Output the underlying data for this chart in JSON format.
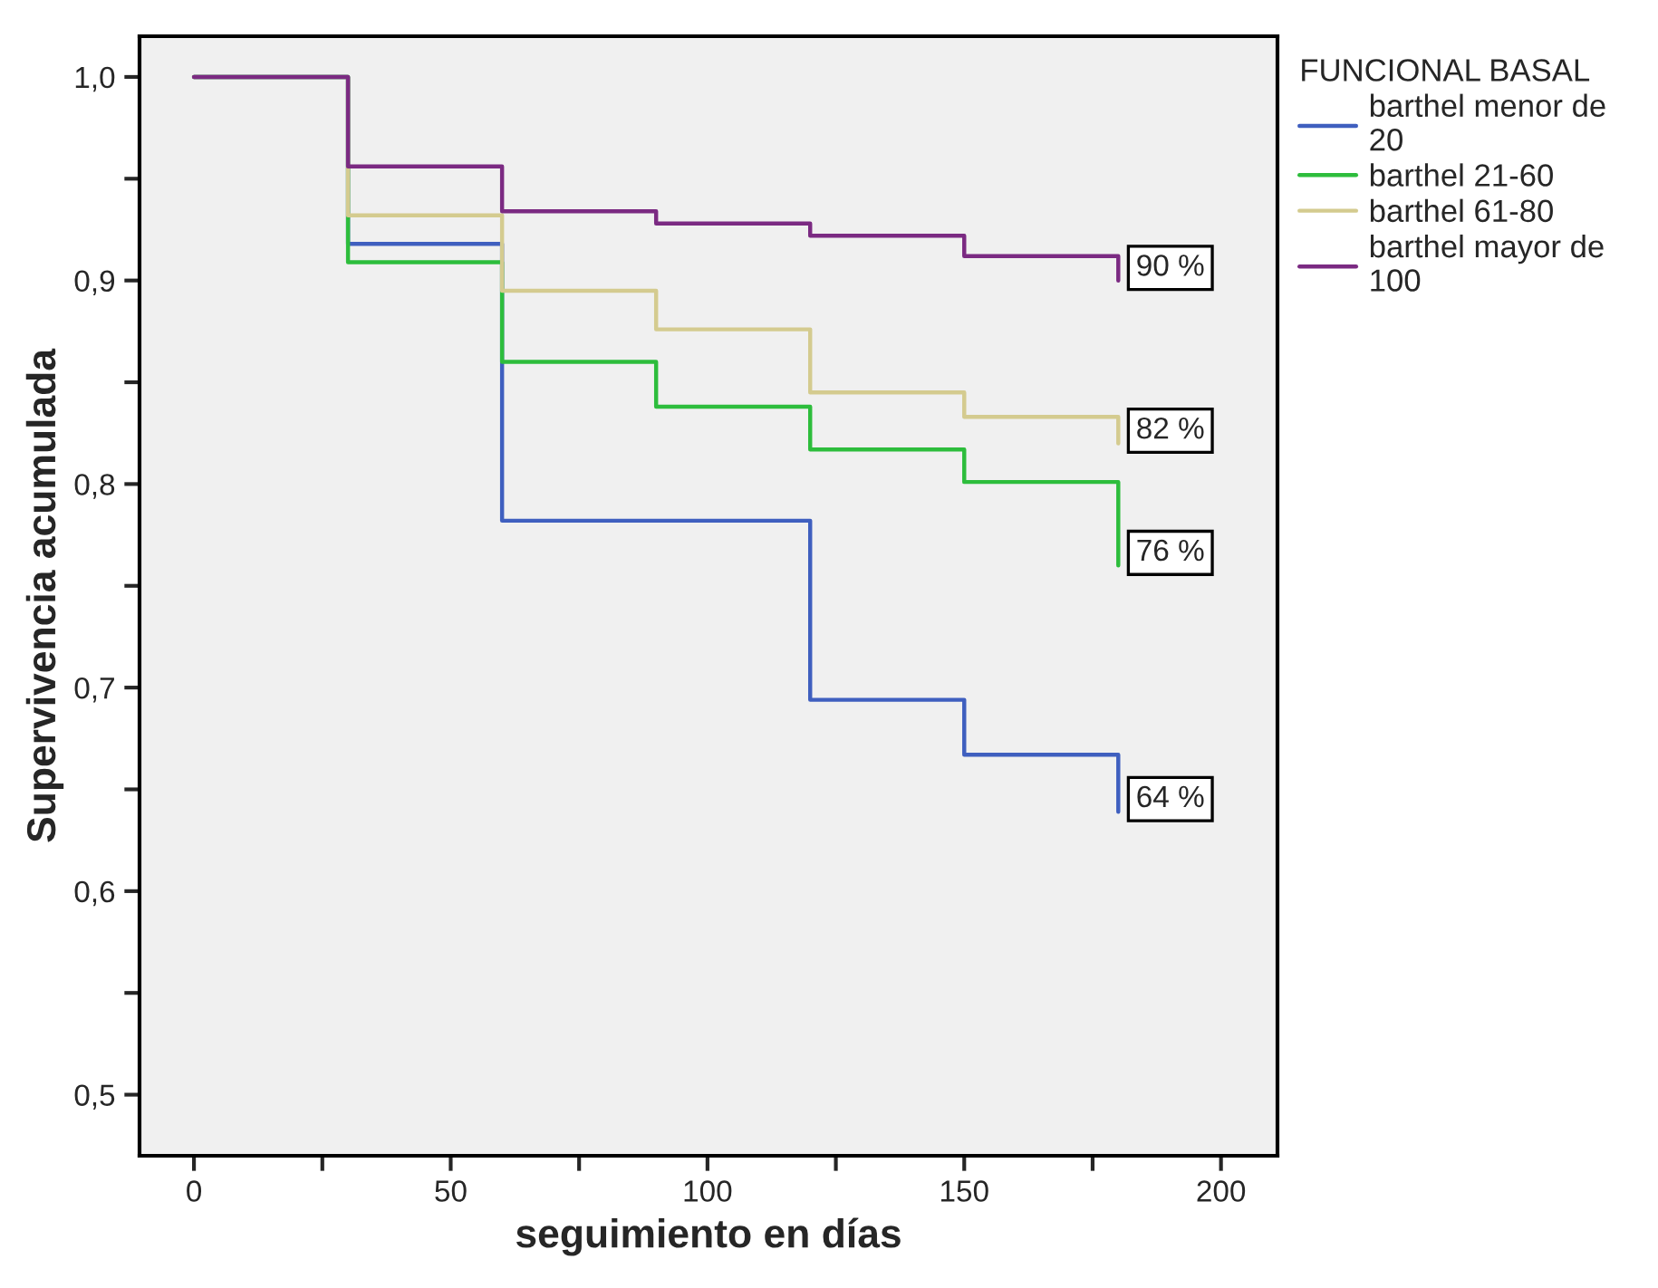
{
  "chart_data": {
    "type": "step",
    "xlabel": "seguimiento en días",
    "ylabel": "Supervivencia acumulada",
    "legend_title": "FUNCIONAL BASAL",
    "legend": "top right",
    "grid": false,
    "x": [
      0,
      30,
      60,
      90,
      120,
      150,
      180,
      180
    ],
    "series": [
      {
        "name": "barthel menor de\n20",
        "color": "#3f5fbf",
        "values": [
          1.0,
          0.918,
          0.782,
          0.782,
          0.694,
          0.667,
          0.667,
          0.639
        ],
        "value_labels": [
          null,
          null,
          null,
          null,
          null,
          null,
          null,
          "64 %"
        ]
      },
      {
        "name": "barthel 21-60",
        "color": "#2dbd3c",
        "values": [
          1.0,
          0.909,
          0.86,
          0.838,
          0.817,
          0.801,
          0.801,
          0.76
        ],
        "value_labels": [
          null,
          null,
          null,
          null,
          null,
          null,
          null,
          "76 %"
        ]
      },
      {
        "name": "barthel 61-80",
        "color": "#d4cb8f",
        "values": [
          1.0,
          0.932,
          0.895,
          0.876,
          0.845,
          0.833,
          0.833,
          0.82
        ],
        "value_labels": [
          null,
          null,
          null,
          null,
          null,
          null,
          null,
          "82 %"
        ]
      },
      {
        "name": "barthel mayor de\n100",
        "color": "#7b2a82",
        "values": [
          1.0,
          0.956,
          0.934,
          0.928,
          0.922,
          0.912,
          0.912,
          0.9
        ],
        "value_labels": [
          null,
          null,
          null,
          null,
          null,
          null,
          null,
          "90 %"
        ]
      }
    ],
    "xlim": [
      -10.6,
      211
    ],
    "xticks": [
      0,
      {
        "value": 25,
        "label": null
      },
      50,
      {
        "value": 75,
        "label": null
      },
      100,
      {
        "value": 125,
        "label": null
      },
      150,
      {
        "value": 175,
        "label": null
      },
      200
    ],
    "ylim": [
      0.47,
      1.02
    ],
    "yticks": [
      {
        "value": 0.5,
        "label": "0,5"
      },
      {
        "value": 0.55,
        "label": null
      },
      {
        "value": 0.6,
        "label": "0,6"
      },
      {
        "value": 0.65,
        "label": null
      },
      {
        "value": 0.7,
        "label": "0,7"
      },
      {
        "value": 0.75,
        "label": null
      },
      {
        "value": 0.8,
        "label": "0,8"
      },
      {
        "value": 0.85,
        "label": null
      },
      {
        "value": 0.9,
        "label": "0,9"
      },
      {
        "value": 0.95,
        "label": null
      },
      {
        "value": 1.0,
        "label": "1,0"
      }
    ]
  }
}
